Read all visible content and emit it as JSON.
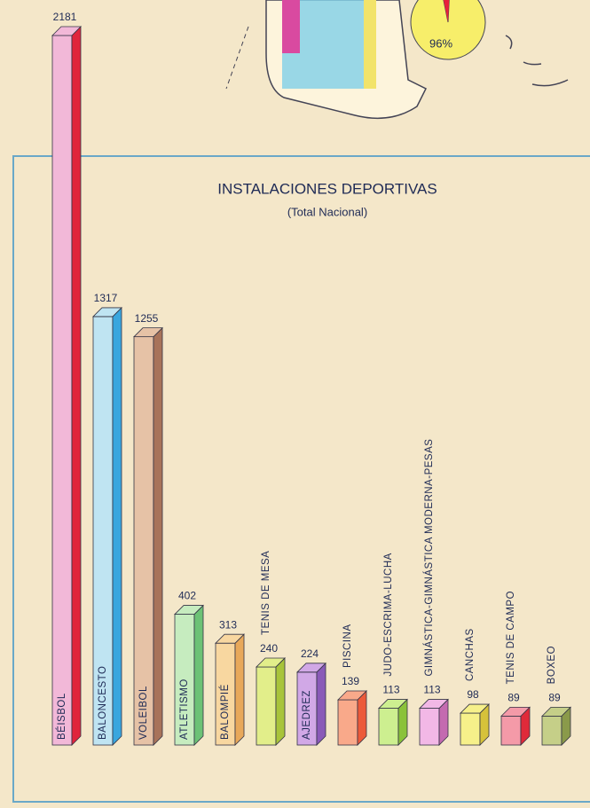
{
  "chart_data": [
    {
      "type": "bar3d",
      "title": "INSTALACIONES DEPORTIVAS",
      "subtitle": "(Total Nacional)",
      "categories": [
        "BÉISBOL",
        "BALONCESTO",
        "VOLEIBOL",
        "ATLETISMO",
        "BALOMPIÉ",
        "TENIS DE MESA",
        "AJEDREZ",
        "PISCINA",
        "JUDO-ESCRIMA-LUCHA",
        "GIMNÁSTICA-GIMNÁSTICA MODERNA-PESAS",
        "CANCHAS",
        "TENIS DE CAMPO",
        "BOXEO"
      ],
      "values": [
        2181,
        1317,
        1255,
        402,
        313,
        240,
        224,
        139,
        113,
        113,
        98,
        89,
        89
      ],
      "colors": [
        "#f2b8d8",
        "#bfe4f2",
        "#e6c2a6",
        "#c6ecbf",
        "#f8d7a0",
        "#e2ee8a",
        "#d1a8e6",
        "#f9a98a",
        "#cdef90",
        "#f2b8e6",
        "#f6f08a",
        "#f49aa8",
        "#c5cf88"
      ],
      "side_colors": [
        "#e0243c",
        "#3aa6de",
        "#a8735a",
        "#6cc276",
        "#e8a85a",
        "#a8c43a",
        "#8a5ab8",
        "#ec5a3a",
        "#8ac23a",
        "#c46ab0",
        "#d6c23a",
        "#e02a3a",
        "#8a9a4a"
      ]
    },
    {
      "type": "pie",
      "values": [
        96
      ],
      "value_labels": [
        "96%"
      ],
      "colors": [
        "#f7ee6a",
        "#e8203a"
      ]
    }
  ]
}
